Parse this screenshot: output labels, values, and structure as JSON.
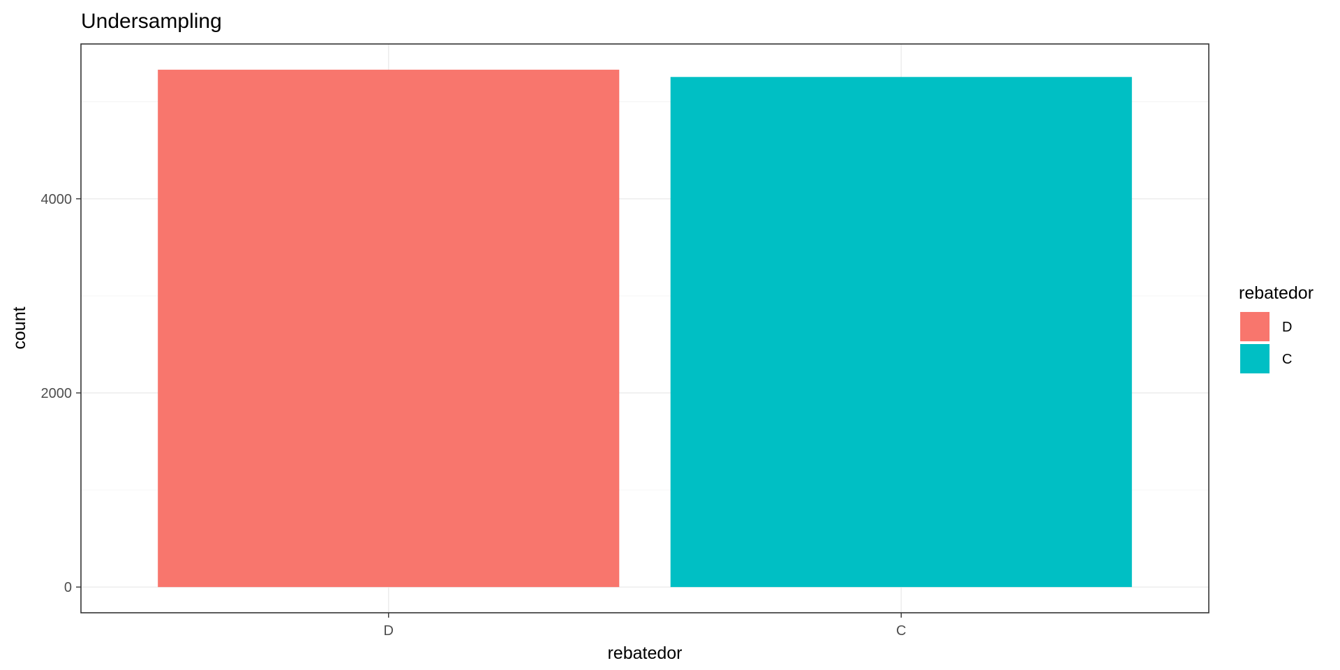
{
  "chart_data": {
    "type": "bar",
    "title": "Undersampling",
    "xlabel": "rebatedor",
    "ylabel": "count",
    "categories": [
      "D",
      "C"
    ],
    "values": [
      5330,
      5255
    ],
    "colors": [
      "#F8766D",
      "#00BFC4"
    ],
    "ylim": [
      -265,
      5595
    ],
    "yticks": [
      0,
      2000,
      4000
    ],
    "yticks_minor": [
      1000,
      3000,
      5000
    ],
    "grid": true,
    "legend": {
      "title": "rebatedor",
      "position": "right",
      "entries": [
        {
          "label": "D",
          "color": "#F8766D"
        },
        {
          "label": "C",
          "color": "#00BFC4"
        }
      ]
    }
  }
}
